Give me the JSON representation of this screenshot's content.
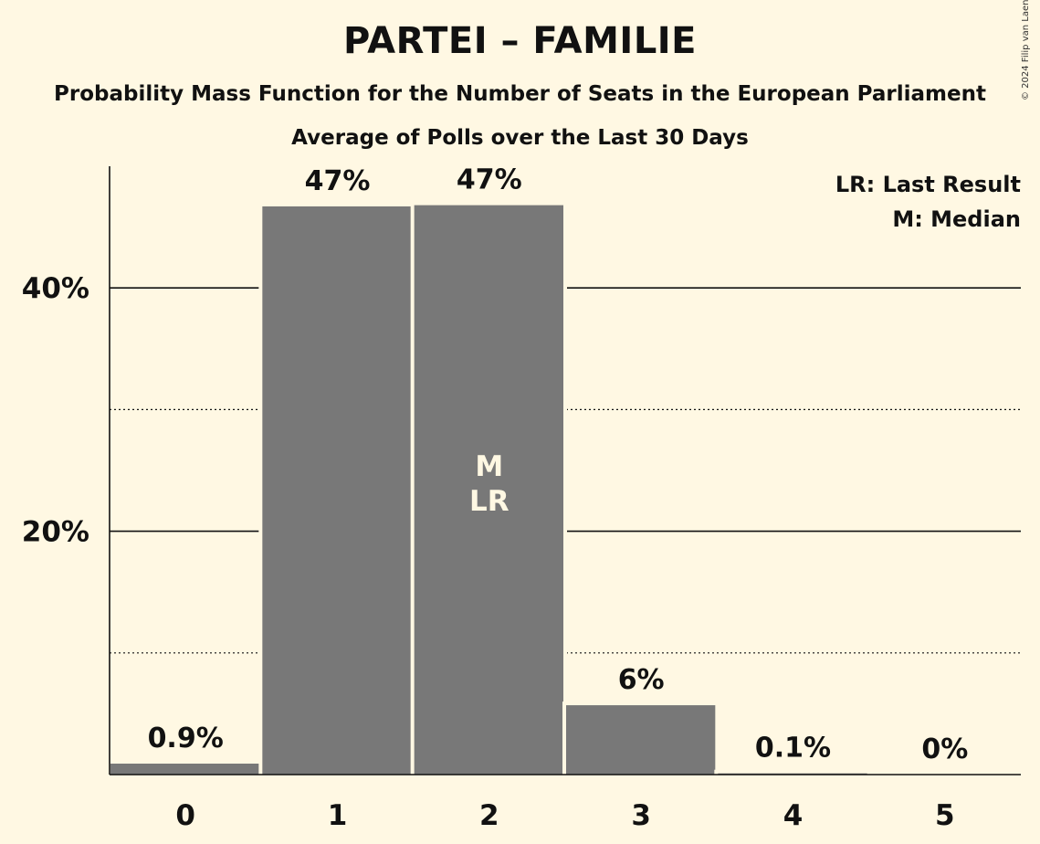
{
  "header": {
    "title": "PARTEI – FAMILIE",
    "subtitle": "Probability Mass Function for the Number of Seats in the European Parliament",
    "subtitle2": "Average of Polls over the Last 30 Days",
    "copyright": "© 2024 Filip van Laenen"
  },
  "chart_data": {
    "type": "bar",
    "title": "PARTEI – FAMILIE",
    "categories": [
      "0",
      "1",
      "2",
      "3",
      "4",
      "5"
    ],
    "values": [
      0.9,
      46.7,
      46.8,
      5.7,
      0.1,
      0
    ],
    "data_labels": [
      "0.9%",
      "47%",
      "47%",
      "6%",
      "0.1%",
      "0%"
    ],
    "ylim": [
      0,
      50
    ],
    "yticks": [
      {
        "value": 20,
        "label": "20%"
      },
      {
        "value": 40,
        "label": "40%"
      }
    ],
    "minor_gridlines": [
      10,
      30
    ],
    "bar_annotations": [
      {
        "category": "2",
        "lines": [
          "M",
          "LR"
        ]
      }
    ],
    "legend": [
      "LR: Last Result",
      "M: Median"
    ],
    "legend_position": "top-right",
    "colors": {
      "bar": "#787878",
      "background": "#fff8e3",
      "bar_annotation": "#fff8e3"
    }
  }
}
